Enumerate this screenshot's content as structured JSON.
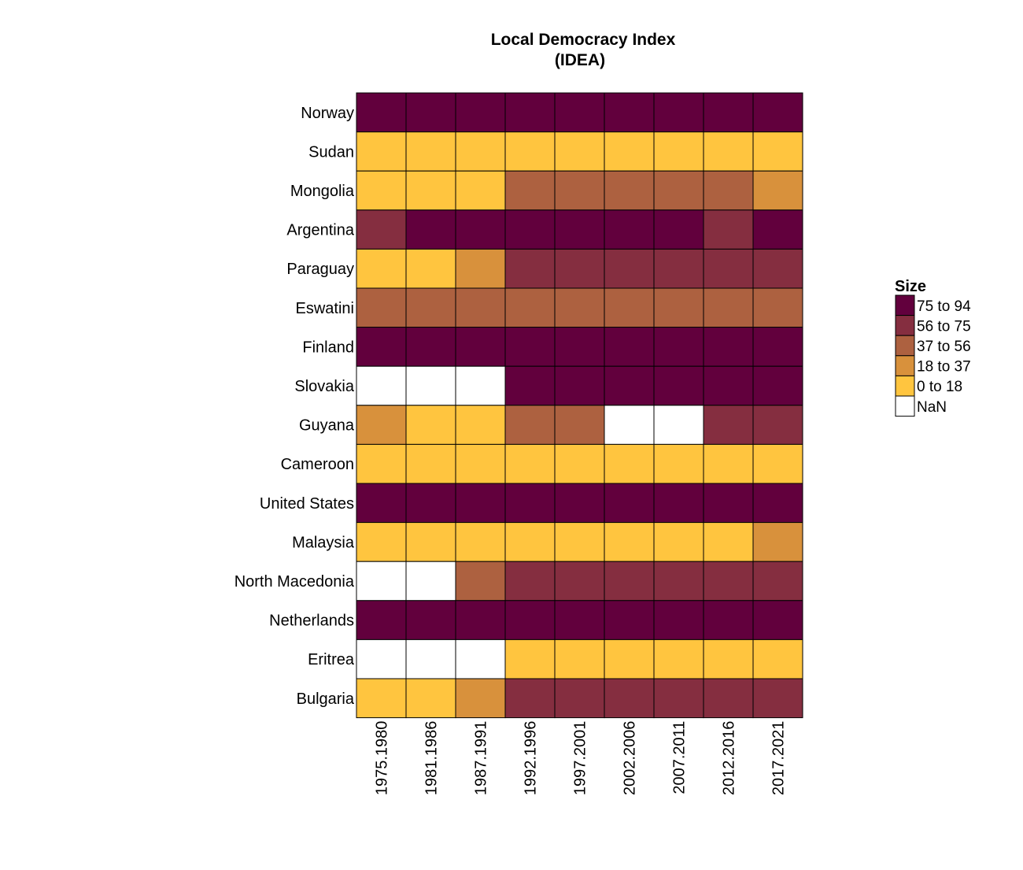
{
  "chart_data": {
    "type": "heatmap",
    "title": "Local Democracy Index",
    "subtitle": "(IDEA)",
    "columns": [
      "1975.1980",
      "1981.1986",
      "1987.1991",
      "1992.1996",
      "1997.2001",
      "2002.2006",
      "2007.2011",
      "2012.2016",
      "2017.2021"
    ],
    "rows": [
      "Norway",
      "Sudan",
      "Mongolia",
      "Argentina",
      "Paraguay",
      "Eswatini",
      "Finland",
      "Slovakia",
      "Guyana",
      "Cameroon",
      "United States",
      "Malaysia",
      "North Macedonia",
      "Netherlands",
      "Eritrea",
      "Bulgaria"
    ],
    "legend": {
      "title": "Size",
      "placement": "right",
      "bins": [
        {
          "label": "75 to 94",
          "color": "#62003d"
        },
        {
          "label": "56 to 75",
          "color": "#852e40"
        },
        {
          "label": "37 to 56",
          "color": "#ad6140"
        },
        {
          "label": "18 to 37",
          "color": "#d8913c"
        },
        {
          "label": "0 to 18",
          "color": "#ffc53f"
        },
        {
          "label": "NaN",
          "color": "#ffffff"
        }
      ]
    },
    "values": [
      [
        "75 to 94",
        "75 to 94",
        "75 to 94",
        "75 to 94",
        "75 to 94",
        "75 to 94",
        "75 to 94",
        "75 to 94",
        "75 to 94"
      ],
      [
        "0 to 18",
        "0 to 18",
        "0 to 18",
        "0 to 18",
        "0 to 18",
        "0 to 18",
        "0 to 18",
        "0 to 18",
        "0 to 18"
      ],
      [
        "0 to 18",
        "0 to 18",
        "0 to 18",
        "37 to 56",
        "37 to 56",
        "37 to 56",
        "37 to 56",
        "37 to 56",
        "18 to 37"
      ],
      [
        "56 to 75",
        "75 to 94",
        "75 to 94",
        "75 to 94",
        "75 to 94",
        "75 to 94",
        "75 to 94",
        "56 to 75",
        "75 to 94"
      ],
      [
        "0 to 18",
        "0 to 18",
        "18 to 37",
        "56 to 75",
        "56 to 75",
        "56 to 75",
        "56 to 75",
        "56 to 75",
        "56 to 75"
      ],
      [
        "37 to 56",
        "37 to 56",
        "37 to 56",
        "37 to 56",
        "37 to 56",
        "37 to 56",
        "37 to 56",
        "37 to 56",
        "37 to 56"
      ],
      [
        "75 to 94",
        "75 to 94",
        "75 to 94",
        "75 to 94",
        "75 to 94",
        "75 to 94",
        "75 to 94",
        "75 to 94",
        "75 to 94"
      ],
      [
        "NaN",
        "NaN",
        "NaN",
        "75 to 94",
        "75 to 94",
        "75 to 94",
        "75 to 94",
        "75 to 94",
        "75 to 94"
      ],
      [
        "18 to 37",
        "0 to 18",
        "0 to 18",
        "37 to 56",
        "37 to 56",
        "NaN",
        "NaN",
        "56 to 75",
        "56 to 75"
      ],
      [
        "0 to 18",
        "0 to 18",
        "0 to 18",
        "0 to 18",
        "0 to 18",
        "0 to 18",
        "0 to 18",
        "0 to 18",
        "0 to 18"
      ],
      [
        "75 to 94",
        "75 to 94",
        "75 to 94",
        "75 to 94",
        "75 to 94",
        "75 to 94",
        "75 to 94",
        "75 to 94",
        "75 to 94"
      ],
      [
        "0 to 18",
        "0 to 18",
        "0 to 18",
        "0 to 18",
        "0 to 18",
        "0 to 18",
        "0 to 18",
        "0 to 18",
        "18 to 37"
      ],
      [
        "NaN",
        "NaN",
        "37 to 56",
        "56 to 75",
        "56 to 75",
        "56 to 75",
        "56 to 75",
        "56 to 75",
        "56 to 75"
      ],
      [
        "75 to 94",
        "75 to 94",
        "75 to 94",
        "75 to 94",
        "75 to 94",
        "75 to 94",
        "75 to 94",
        "75 to 94",
        "75 to 94"
      ],
      [
        "NaN",
        "NaN",
        "NaN",
        "0 to 18",
        "0 to 18",
        "0 to 18",
        "0 to 18",
        "0 to 18",
        "0 to 18"
      ],
      [
        "0 to 18",
        "0 to 18",
        "18 to 37",
        "56 to 75",
        "56 to 75",
        "56 to 75",
        "56 to 75",
        "56 to 75",
        "56 to 75"
      ]
    ]
  }
}
